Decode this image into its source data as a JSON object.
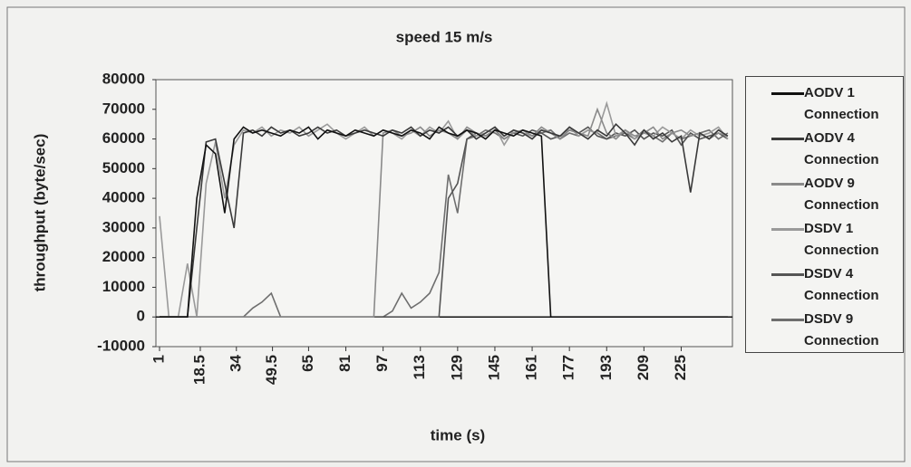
{
  "chart_data": {
    "type": "line",
    "title": "speed 15 m/s",
    "x_label": "time (s)",
    "y_label": "throughput (byte/sec)",
    "x": [
      1,
      5,
      9,
      13,
      17,
      21,
      25,
      29,
      33,
      37,
      41,
      45,
      49,
      53,
      57,
      61,
      65,
      69,
      73,
      77,
      81,
      85,
      89,
      93,
      97,
      101,
      105,
      109,
      113,
      117,
      121,
      125,
      129,
      133,
      137,
      141,
      145,
      149,
      153,
      157,
      161,
      165,
      169,
      173,
      177,
      181,
      185,
      189,
      193,
      197,
      201,
      205,
      209,
      213,
      217,
      221,
      225,
      229,
      233,
      237,
      241,
      245
    ],
    "xlim": [
      1,
      247
    ],
    "xticks": [
      1,
      18.5,
      34,
      49.5,
      65,
      81,
      97,
      113,
      129,
      145,
      161,
      177,
      193,
      209,
      225
    ],
    "ylim": [
      -10000,
      80000
    ],
    "yticks": [
      -10000,
      0,
      10000,
      20000,
      30000,
      40000,
      50000,
      60000,
      70000,
      80000
    ],
    "legend": "right",
    "series": [
      {
        "name": "AODV 1 Connection",
        "color": "#111111",
        "values": [
          0,
          0,
          0,
          0,
          40000,
          58000,
          55000,
          35000,
          60000,
          64000,
          62000,
          63000,
          62000,
          61000,
          63000,
          62000,
          64000,
          60000,
          63000,
          62000,
          61000,
          63000,
          62000,
          61000,
          63000,
          62000,
          61000,
          63000,
          62000,
          60000,
          64000,
          62000,
          61000,
          63000,
          62000,
          60000,
          63000,
          62000,
          61000,
          63000,
          62000,
          61000,
          0,
          0,
          0,
          0,
          0,
          0,
          0,
          0,
          0,
          0,
          0,
          0,
          0,
          0,
          0,
          0,
          0,
          0,
          0,
          0
        ]
      },
      {
        "name": "AODV 4 Connection",
        "color": "#3a3a3a",
        "values": [
          0,
          0,
          0,
          0,
          30000,
          59000,
          60000,
          45000,
          30000,
          62000,
          63000,
          61000,
          64000,
          62000,
          63000,
          61000,
          62000,
          64000,
          62000,
          63000,
          61000,
          62000,
          63000,
          62000,
          61000,
          63000,
          62000,
          64000,
          61000,
          63000,
          62000,
          64000,
          61000,
          63000,
          60000,
          62000,
          64000,
          61000,
          63000,
          62000,
          60000,
          63000,
          62000,
          61000,
          64000,
          62000,
          60000,
          63000,
          61000,
          65000,
          62000,
          58000,
          63000,
          60000,
          62000,
          59000,
          61000,
          42000,
          62000,
          60000,
          63000,
          61000
        ]
      },
      {
        "name": "AODV 9 Connection",
        "color": "#8a8a8a",
        "values": [
          0,
          0,
          0,
          0,
          0,
          0,
          0,
          0,
          0,
          0,
          0,
          0,
          0,
          0,
          0,
          0,
          0,
          0,
          0,
          0,
          0,
          0,
          0,
          0,
          62000,
          63000,
          61000,
          62000,
          64000,
          61000,
          63000,
          62000,
          60000,
          64000,
          62000,
          61000,
          63000,
          60000,
          62000,
          63000,
          61000,
          64000,
          62000,
          60000,
          63000,
          62000,
          61000,
          70000,
          62000,
          60000,
          63000,
          61000,
          62000,
          64000,
          60000,
          62000,
          63000,
          61000,
          62000,
          60000,
          62000,
          61000
        ]
      },
      {
        "name": "DSDV 1 Connection",
        "color": "#9a9a9a",
        "values": [
          34000,
          0,
          0,
          18000,
          0,
          45000,
          59000,
          40000,
          58000,
          63000,
          62000,
          64000,
          61000,
          63000,
          62000,
          64000,
          61000,
          63000,
          65000,
          62000,
          60000,
          62000,
          64000,
          61000,
          63000,
          62000,
          60000,
          63000,
          61000,
          64000,
          62000,
          66000,
          60000,
          63000,
          61000,
          62000,
          64000,
          58000,
          63000,
          62000,
          61000,
          63000,
          62000,
          60000,
          64000,
          61000,
          63000,
          62000,
          72000,
          61000,
          63000,
          60000,
          62000,
          61000,
          64000,
          62000,
          60000,
          63000,
          61000,
          62000,
          64000,
          60000
        ]
      },
      {
        "name": "DSDV 4 Connection",
        "color": "#555555",
        "values": [
          0,
          0,
          0,
          0,
          0,
          0,
          0,
          0,
          0,
          0,
          0,
          0,
          0,
          0,
          0,
          0,
          0,
          0,
          0,
          0,
          0,
          0,
          0,
          0,
          0,
          0,
          0,
          0,
          0,
          0,
          0,
          40000,
          45000,
          60000,
          62000,
          61000,
          63000,
          60000,
          62000,
          61000,
          63000,
          62000,
          60000,
          61000,
          63000,
          62000,
          64000,
          61000,
          60000,
          62000,
          61000,
          63000,
          60000,
          62000,
          61000,
          63000,
          58000,
          62000,
          60000,
          61000,
          62000,
          60000
        ]
      },
      {
        "name": "DSDV 9 Connection",
        "color": "#6e6e6e",
        "values": [
          0,
          0,
          0,
          0,
          0,
          0,
          0,
          0,
          0,
          0,
          3000,
          5000,
          8000,
          0,
          0,
          0,
          0,
          0,
          0,
          0,
          0,
          0,
          0,
          0,
          0,
          2000,
          8000,
          3000,
          5000,
          8000,
          15000,
          48000,
          35000,
          60000,
          61000,
          63000,
          62000,
          60000,
          62000,
          63000,
          61000,
          62000,
          63000,
          60000,
          62000,
          61000,
          63000,
          62000,
          60000,
          61000,
          62000,
          60000,
          63000,
          61000,
          59000,
          62000,
          60000,
          61000,
          62000,
          63000,
          60000,
          62000
        ]
      }
    ]
  }
}
